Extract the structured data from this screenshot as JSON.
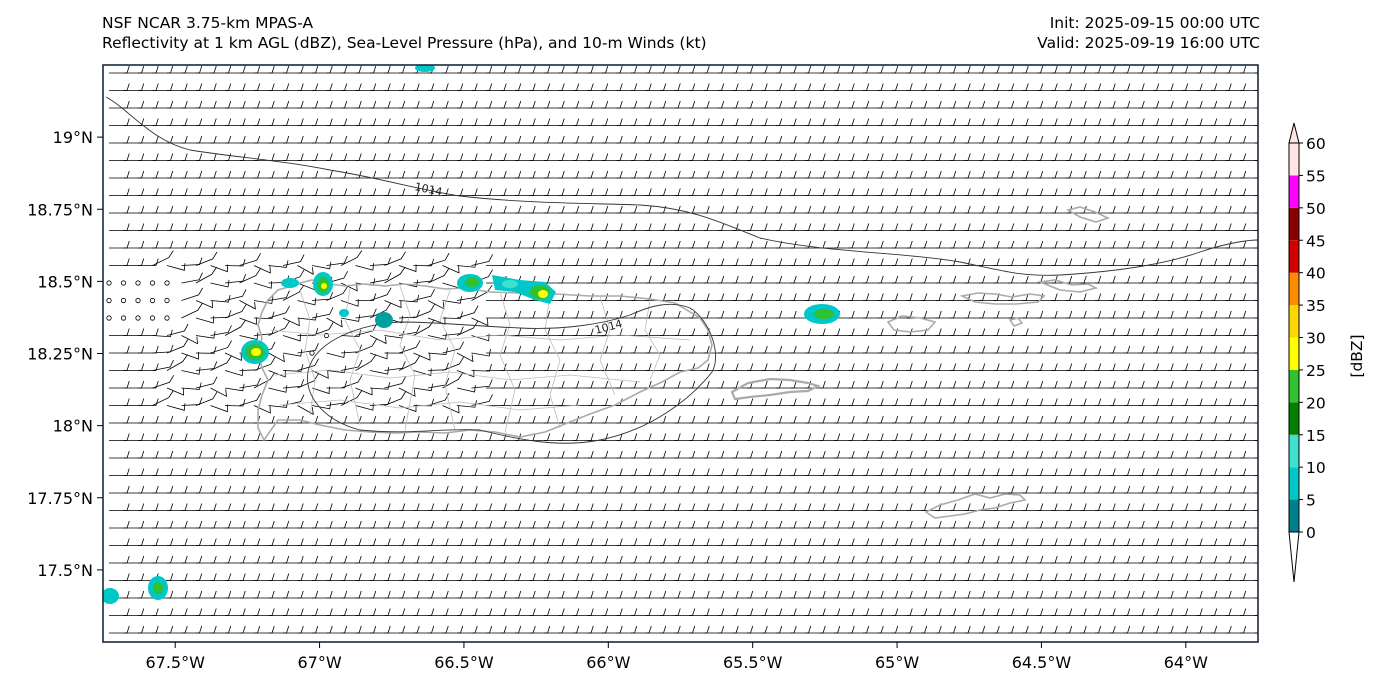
{
  "header": {
    "model": "NSF NCAR 3.75-km MPAS-A",
    "fields": "Reflectivity at 1 km AGL (dBZ), Sea-Level Pressure (hPa), and 10-m Winds (kt)",
    "init": "Init: 2025-09-15 00:00 UTC",
    "valid": "Valid: 2025-09-19 16:00 UTC"
  },
  "map": {
    "lon_range": [
      -67.75,
      -63.75
    ],
    "lat_range": [
      17.25,
      19.25
    ],
    "lon_ticks": [
      {
        "value": -67.5,
        "label": "67.5°W"
      },
      {
        "value": -67.0,
        "label": "67°W"
      },
      {
        "value": -66.5,
        "label": "66.5°W"
      },
      {
        "value": -66.0,
        "label": "66°W"
      },
      {
        "value": -65.5,
        "label": "65.5°W"
      },
      {
        "value": -65.0,
        "label": "65°W"
      },
      {
        "value": -64.5,
        "label": "64.5°W"
      },
      {
        "value": -64.0,
        "label": "64°W"
      }
    ],
    "lat_ticks": [
      {
        "value": 19.0,
        "label": "19°N"
      },
      {
        "value": 18.75,
        "label": "18.75°N"
      },
      {
        "value": 18.5,
        "label": "18.5°N"
      },
      {
        "value": 18.25,
        "label": "18.25°N"
      },
      {
        "value": 18.0,
        "label": "18°N"
      },
      {
        "value": 17.75,
        "label": "17.75°N"
      },
      {
        "value": 17.5,
        "label": "17.5°N"
      }
    ],
    "isobar_label_1": "1014",
    "isobar_label_2": "1014",
    "coastline_color": "#aaaaaa",
    "isobar_color": "#333333",
    "wind_barb_color": "#000000"
  },
  "colorbar": {
    "unit_label": "[dBZ]",
    "ticks": [
      "0",
      "5",
      "10",
      "15",
      "20",
      "25",
      "30",
      "35",
      "40",
      "45",
      "50",
      "55",
      "60"
    ],
    "colors": [
      "#00808a",
      "#00c8c8",
      "#40e0d0",
      "#008000",
      "#30c030",
      "#ffff00",
      "#ffd700",
      "#ff8c00",
      "#d20000",
      "#8b0000",
      "#ff00ff",
      "#ffe4e1"
    ]
  }
}
